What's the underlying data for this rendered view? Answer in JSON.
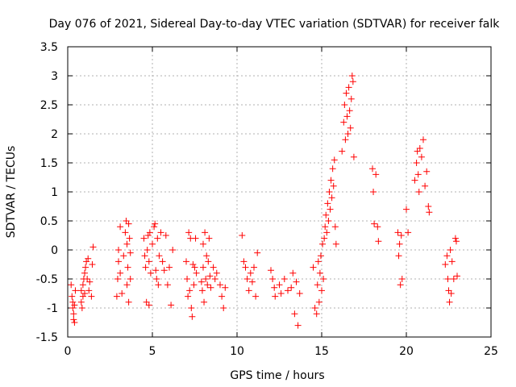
{
  "chart_data": {
    "type": "scatter",
    "title": "Day 076 of 2021, Sidereal Day-to-day VTEC variation (SDTVAR) for receiver falk",
    "xlabel": "GPS time / hours",
    "ylabel": "SDTVAR / TECUs",
    "xlim": [
      0,
      25
    ],
    "ylim": [
      -1.5,
      3.5
    ],
    "x_ticks": [
      0,
      5,
      10,
      15,
      20,
      25
    ],
    "x_tick_labels": [
      "0",
      "5",
      "10",
      "15",
      "20",
      "25"
    ],
    "y_ticks": [
      -1.5,
      -1,
      -0.5,
      0,
      0.5,
      1,
      1.5,
      2,
      2.5,
      3,
      3.5
    ],
    "y_tick_labels": [
      "-1.5",
      "-1",
      "-0.5",
      "0",
      "0.5",
      "1",
      "1.5",
      "2",
      "2.5",
      "3",
      "3.5"
    ],
    "grid": true,
    "marker": "plus",
    "marker_color": "#ff0000",
    "series": [
      {
        "name": "SDTVAR",
        "points": [
          [
            0.2,
            -0.6
          ],
          [
            0.25,
            -0.8
          ],
          [
            0.3,
            -0.9
          ],
          [
            0.3,
            -1.0
          ],
          [
            0.35,
            -1.1
          ],
          [
            0.35,
            -1.2
          ],
          [
            0.4,
            -1.25
          ],
          [
            0.4,
            -0.95
          ],
          [
            0.45,
            -0.7
          ],
          [
            0.8,
            -0.7
          ],
          [
            0.8,
            -0.9
          ],
          [
            0.85,
            -1.0
          ],
          [
            0.9,
            -0.8
          ],
          [
            0.9,
            -0.6
          ],
          [
            0.95,
            -0.5
          ],
          [
            1.0,
            -0.4
          ],
          [
            1.0,
            -0.75
          ],
          [
            1.05,
            -0.3
          ],
          [
            1.1,
            -0.2
          ],
          [
            1.15,
            -0.5
          ],
          [
            1.2,
            -0.15
          ],
          [
            1.25,
            -0.7
          ],
          [
            1.3,
            -0.55
          ],
          [
            1.4,
            -0.8
          ],
          [
            1.45,
            -0.25
          ],
          [
            1.5,
            0.05
          ],
          [
            2.9,
            -0.8
          ],
          [
            2.95,
            -0.5
          ],
          [
            3.0,
            -0.2
          ],
          [
            3.0,
            0.0
          ],
          [
            3.1,
            0.4
          ],
          [
            3.1,
            -0.4
          ],
          [
            3.2,
            -0.75
          ],
          [
            3.3,
            -0.1
          ],
          [
            3.4,
            0.3
          ],
          [
            3.45,
            0.5
          ],
          [
            3.5,
            0.1
          ],
          [
            3.5,
            -0.6
          ],
          [
            3.55,
            -0.3
          ],
          [
            3.6,
            0.45
          ],
          [
            3.6,
            -0.9
          ],
          [
            3.65,
            0.2
          ],
          [
            3.7,
            -0.05
          ],
          [
            3.7,
            -0.5
          ],
          [
            4.5,
            0.2
          ],
          [
            4.55,
            -0.1
          ],
          [
            4.6,
            -0.3
          ],
          [
            4.65,
            -0.9
          ],
          [
            4.7,
            0.0
          ],
          [
            4.75,
            0.25
          ],
          [
            4.8,
            -0.95
          ],
          [
            4.8,
            -0.2
          ],
          [
            4.85,
            0.3
          ],
          [
            4.9,
            -0.4
          ],
          [
            5.0,
            0.1
          ],
          [
            5.1,
            0.4
          ],
          [
            5.15,
            0.45
          ],
          [
            5.2,
            -0.35
          ],
          [
            5.25,
            -0.5
          ],
          [
            5.3,
            0.2
          ],
          [
            5.35,
            -0.6
          ],
          [
            5.4,
            -0.1
          ],
          [
            5.5,
            0.3
          ],
          [
            5.6,
            -0.2
          ],
          [
            5.7,
            -0.35
          ],
          [
            5.8,
            0.25
          ],
          [
            5.9,
            -0.6
          ],
          [
            6.0,
            -0.3
          ],
          [
            6.1,
            -0.95
          ],
          [
            6.2,
            0.0
          ],
          [
            7.0,
            -0.2
          ],
          [
            7.05,
            -0.5
          ],
          [
            7.1,
            -0.8
          ],
          [
            7.15,
            0.3
          ],
          [
            7.2,
            -0.7
          ],
          [
            7.25,
            0.2
          ],
          [
            7.3,
            -1.0
          ],
          [
            7.35,
            -1.15
          ],
          [
            7.4,
            -0.25
          ],
          [
            7.45,
            -0.6
          ],
          [
            7.5,
            -0.3
          ],
          [
            7.55,
            0.2
          ],
          [
            7.6,
            -0.4
          ],
          [
            7.9,
            -0.55
          ],
          [
            7.95,
            -0.7
          ],
          [
            8.0,
            0.1
          ],
          [
            8.0,
            -0.3
          ],
          [
            8.05,
            -0.9
          ],
          [
            8.1,
            0.3
          ],
          [
            8.15,
            -0.5
          ],
          [
            8.2,
            -0.1
          ],
          [
            8.25,
            -0.6
          ],
          [
            8.3,
            -0.2
          ],
          [
            8.35,
            0.2
          ],
          [
            8.4,
            -0.45
          ],
          [
            8.45,
            -0.65
          ],
          [
            8.6,
            -0.3
          ],
          [
            8.7,
            -0.5
          ],
          [
            8.8,
            -0.4
          ],
          [
            9.0,
            -0.6
          ],
          [
            9.1,
            -0.8
          ],
          [
            9.2,
            -1.0
          ],
          [
            9.3,
            -0.65
          ],
          [
            10.3,
            0.25
          ],
          [
            10.4,
            -0.2
          ],
          [
            10.5,
            -0.3
          ],
          [
            10.6,
            -0.5
          ],
          [
            10.7,
            -0.7
          ],
          [
            10.8,
            -0.4
          ],
          [
            10.9,
            -0.55
          ],
          [
            11.0,
            -0.3
          ],
          [
            11.1,
            -0.8
          ],
          [
            11.2,
            -0.05
          ],
          [
            12.0,
            -0.35
          ],
          [
            12.1,
            -0.5
          ],
          [
            12.2,
            -0.65
          ],
          [
            12.25,
            -0.8
          ],
          [
            12.5,
            -0.6
          ],
          [
            12.6,
            -0.75
          ],
          [
            12.8,
            -0.5
          ],
          [
            13.0,
            -0.7
          ],
          [
            13.2,
            -0.65
          ],
          [
            13.3,
            -0.4
          ],
          [
            13.4,
            -1.1
          ],
          [
            13.5,
            -0.55
          ],
          [
            13.6,
            -1.3
          ],
          [
            13.7,
            -0.75
          ],
          [
            14.5,
            -0.3
          ],
          [
            14.6,
            -1.0
          ],
          [
            14.7,
            -1.1
          ],
          [
            14.75,
            -0.6
          ],
          [
            14.8,
            -0.2
          ],
          [
            14.85,
            -0.9
          ],
          [
            14.9,
            -0.4
          ],
          [
            14.95,
            -0.1
          ],
          [
            15.0,
            -0.7
          ],
          [
            15.05,
            0.1
          ],
          [
            15.1,
            -0.5
          ],
          [
            15.15,
            0.2
          ],
          [
            15.2,
            0.4
          ],
          [
            15.25,
            0.6
          ],
          [
            15.3,
            0.3
          ],
          [
            15.35,
            0.8
          ],
          [
            15.4,
            0.5
          ],
          [
            15.45,
            1.0
          ],
          [
            15.5,
            0.7
          ],
          [
            15.55,
            1.2
          ],
          [
            15.6,
            0.9
          ],
          [
            15.65,
            1.4
          ],
          [
            15.7,
            1.1
          ],
          [
            15.75,
            1.55
          ],
          [
            15.8,
            0.4
          ],
          [
            15.85,
            0.1
          ],
          [
            16.2,
            1.7
          ],
          [
            16.3,
            2.2
          ],
          [
            16.35,
            2.5
          ],
          [
            16.4,
            1.9
          ],
          [
            16.45,
            2.7
          ],
          [
            16.5,
            2.3
          ],
          [
            16.55,
            2.0
          ],
          [
            16.6,
            2.8
          ],
          [
            16.65,
            2.4
          ],
          [
            16.7,
            2.1
          ],
          [
            16.75,
            2.6
          ],
          [
            16.8,
            3.0
          ],
          [
            16.85,
            2.9
          ],
          [
            16.9,
            1.6
          ],
          [
            18.0,
            1.4
          ],
          [
            18.05,
            1.0
          ],
          [
            18.1,
            0.45
          ],
          [
            18.2,
            1.3
          ],
          [
            18.3,
            0.4
          ],
          [
            18.35,
            0.15
          ],
          [
            19.5,
            0.3
          ],
          [
            19.55,
            -0.1
          ],
          [
            19.6,
            0.1
          ],
          [
            19.65,
            -0.6
          ],
          [
            19.7,
            0.25
          ],
          [
            19.75,
            -0.5
          ],
          [
            20.0,
            0.7
          ],
          [
            20.1,
            0.3
          ],
          [
            20.5,
            1.2
          ],
          [
            20.6,
            1.5
          ],
          [
            20.65,
            1.7
          ],
          [
            20.7,
            1.3
          ],
          [
            20.75,
            1.0
          ],
          [
            20.8,
            1.75
          ],
          [
            20.9,
            1.6
          ],
          [
            21.0,
            1.9
          ],
          [
            21.1,
            1.1
          ],
          [
            21.2,
            1.35
          ],
          [
            21.3,
            0.75
          ],
          [
            21.35,
            0.65
          ],
          [
            22.3,
            -0.25
          ],
          [
            22.4,
            -0.1
          ],
          [
            22.45,
            -0.5
          ],
          [
            22.5,
            -0.7
          ],
          [
            22.55,
            -0.9
          ],
          [
            22.6,
            0.0
          ],
          [
            22.65,
            -0.75
          ],
          [
            22.7,
            -0.2
          ],
          [
            22.8,
            -0.5
          ],
          [
            22.9,
            0.2
          ],
          [
            22.95,
            0.15
          ],
          [
            23.0,
            -0.45
          ]
        ]
      }
    ]
  }
}
